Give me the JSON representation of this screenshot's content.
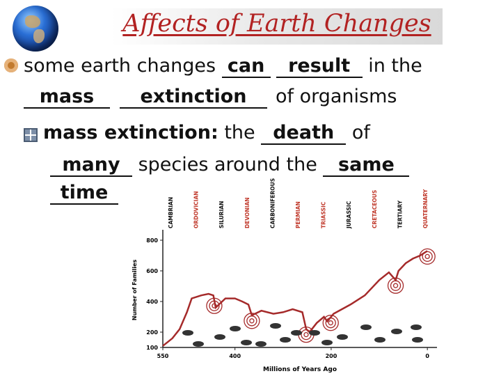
{
  "title": "Affects of Earth Changes",
  "bullet1": {
    "pre": "some earth changes ",
    "answer_can": "can",
    "answer_result": "result",
    "mid": " in the",
    "answer_mass": "mass",
    "answer_extinction": "extinction",
    "post": "of organisms"
  },
  "bullet2": {
    "term": "mass extinction:",
    "pre": " the ",
    "answer_death": "death",
    "mid": " of",
    "answer_many": "many",
    "mid2": " species around the ",
    "answer_same": "same",
    "answer_time": "time"
  },
  "chart_data": {
    "type": "line",
    "xlabel": "Millions of Years Ago",
    "ylabel": "Number of Families",
    "x_ticks": [
      550,
      400,
      200,
      0
    ],
    "y_ticks": [
      100,
      200,
      400,
      600,
      800
    ],
    "xlim": [
      550,
      -20
    ],
    "ylim": [
      100,
      850
    ],
    "periods": [
      "CAMBRIAN",
      "ORDOVICIAN",
      "SILURIAN",
      "DEVONIAN",
      "CARBONIFEROUS",
      "PERMIAN",
      "TRIASSIC",
      "JURASSIC",
      "CRETACEOUS",
      "TERTIARY",
      "QUATERNARY"
    ],
    "period_colors": [
      "#111111",
      "#c0392b",
      "#111111",
      "#c0392b",
      "#111111",
      "#c0392b",
      "#c0392b",
      "#111111",
      "#c0392b",
      "#111111",
      "#c0392b"
    ],
    "series": [
      {
        "x": [
          550,
          530,
          515,
          500,
          490,
          470,
          455,
          445,
          440,
          420,
          400,
          385,
          372,
          365,
          345,
          320,
          300,
          280,
          260,
          252,
          245,
          230,
          215,
          208,
          195,
          160,
          130,
          100,
          80,
          66,
          60,
          45,
          30,
          15,
          5,
          0
        ],
        "y": [
          110,
          160,
          220,
          330,
          420,
          440,
          450,
          440,
          360,
          420,
          420,
          400,
          380,
          310,
          340,
          320,
          330,
          350,
          330,
          220,
          200,
          260,
          300,
          270,
          320,
          380,
          440,
          540,
          590,
          540,
          600,
          650,
          680,
          700,
          720,
          730
        ]
      }
    ],
    "extinction_markers_x": [
      443,
      365,
      252,
      201,
      66,
      0
    ],
    "line_color": "#a52a2a",
    "ring_color": "#a52a2a"
  }
}
